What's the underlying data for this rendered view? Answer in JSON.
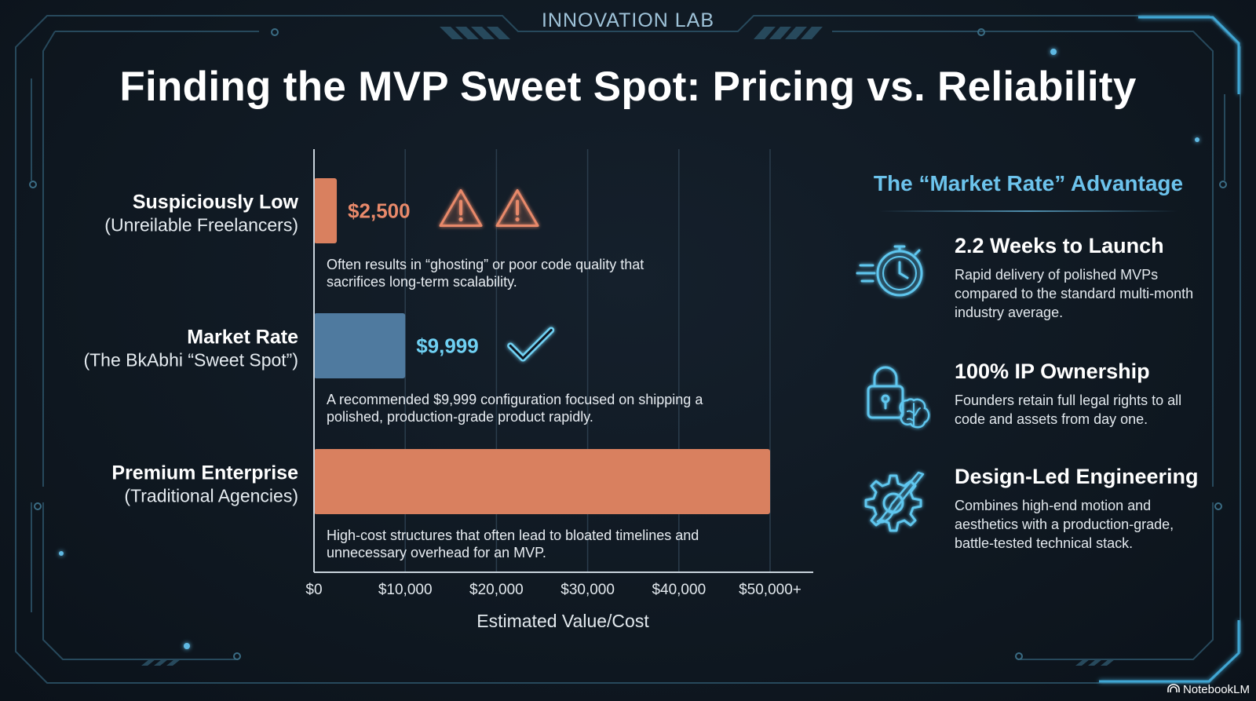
{
  "header": {
    "lab_label": "INNOVATION LAB",
    "title": "Finding the MVP Sweet Spot: Pricing vs. Reliability"
  },
  "chart_data": {
    "type": "bar",
    "orientation": "horizontal",
    "categories": [
      {
        "title": "Suspiciously Low",
        "subtitle": "(Unreilable Freelancers)"
      },
      {
        "title": "Market Rate",
        "subtitle": "(The BkAbhi “Sweet Spot”)"
      },
      {
        "title": "Premium Enterprise",
        "subtitle": "(Traditional Agencies)"
      }
    ],
    "values": [
      2500,
      9999,
      50000
    ],
    "value_labels": [
      "$2,500",
      "$9,999",
      ""
    ],
    "bar_colors": [
      "#d9805f",
      "#4f7a9f",
      "#d9805f"
    ],
    "value_label_colors": [
      "#e8896a",
      "#6fd0f2",
      ""
    ],
    "status_icons": [
      [
        "warning-icon",
        "warning-icon"
      ],
      [
        "checkmark-icon"
      ],
      []
    ],
    "notes": [
      [
        "Often results in “ghosting” or poor code quality that",
        "sacrifices long-term scalability."
      ],
      [
        "A recommended $9,999 configuration focused on shipping a",
        "polished, production-grade product rapidly."
      ],
      [
        "High-cost structures that often lead to bloated timelines and",
        "unnecessary overhead for an MVP."
      ]
    ],
    "x_ticks": [
      0,
      10000,
      20000,
      30000,
      40000,
      50000
    ],
    "x_tick_labels": [
      "$0",
      "$10,000",
      "$20,000",
      "$30,000",
      "$40,000",
      "$50,000+"
    ],
    "xlim": [
      0,
      50000
    ],
    "xlabel": "Estimated Value/Cost",
    "grid": true
  },
  "panel": {
    "title": "The “Market Rate” Advantage",
    "features": [
      {
        "icon": "stopwatch-icon",
        "title": "2.2 Weeks to Launch",
        "description": "Rapid delivery of polished MVPs compared to the standard multi-month industry average."
      },
      {
        "icon": "lock-brain-icon",
        "title": "100% IP Ownership",
        "description": "Founders retain full legal rights to all code and assets from day one."
      },
      {
        "icon": "gear-brush-icon",
        "title": "Design-Led Engineering",
        "description": "Combines high-end motion and aesthetics with a production-grade, battle-tested technical stack."
      }
    ]
  },
  "colors": {
    "accent": "#6cc3ec",
    "frame": "#2a5a73",
    "warm": "#d9805f",
    "cool": "#4f7a9f"
  },
  "brand": {
    "logo_icon": "notebooklm-logo-icon",
    "name": "NotebookLM"
  }
}
